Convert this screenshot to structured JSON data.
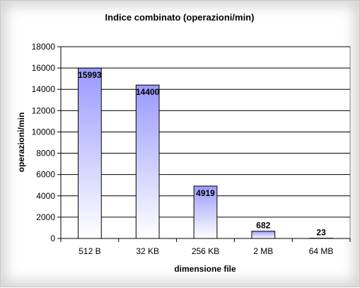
{
  "chart_data": {
    "type": "bar",
    "title": "Indice combinato (operazioni/min)",
    "xlabel": "dimensione file",
    "ylabel": "operazioni/min",
    "categories": [
      "512 B",
      "32 KB",
      "256 KB",
      "2 MB",
      "64 MB"
    ],
    "values": [
      15993,
      14400,
      4919,
      682,
      23
    ],
    "ylim": [
      0,
      18000
    ],
    "ytick_step": 2000,
    "grid": true,
    "legend": "none",
    "bar_gradient": [
      "#ffffff",
      "#9999ff"
    ]
  }
}
